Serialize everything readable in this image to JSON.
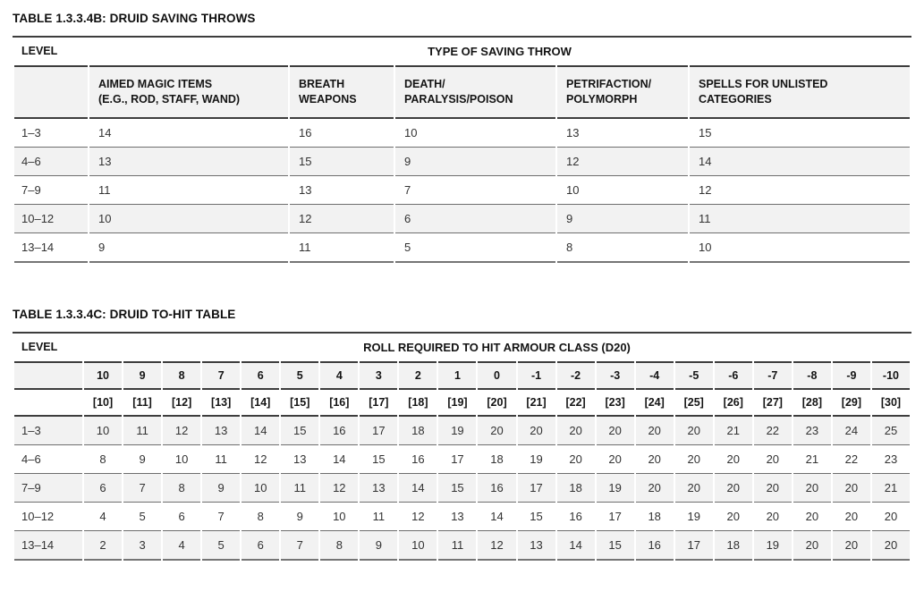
{
  "colors": {
    "stripe": "#f2f2f2",
    "heavy_rule": "#3d3d3d",
    "thin_rule": "#6e6e6e",
    "bottom_rule": "#757575",
    "heading_text": "#0f0f0f",
    "body_text": "#333333",
    "background": "#ffffff"
  },
  "tables": {
    "saving_throws": {
      "title": "TABLE 1.3.3.4B: DRUID SAVING THROWS",
      "level_header": "LEVEL",
      "group_header": "TYPE OF SAVING THROW",
      "column_headers": [
        "AIMED MAGIC ITEMS\n(E.G., ROD, STAFF, WAND)",
        "BREATH\nWEAPONS",
        "DEATH/\nPARALYSIS/POISON",
        "PETRIFACTION/\nPOLYMORPH",
        "SPELLS FOR UNLISTED\nCATEGORIES"
      ],
      "rows": [
        {
          "level": "1–3",
          "values": [
            14,
            16,
            10,
            13,
            15
          ]
        },
        {
          "level": "4–6",
          "values": [
            13,
            15,
            9,
            12,
            14
          ]
        },
        {
          "level": "7–9",
          "values": [
            11,
            13,
            7,
            10,
            12
          ]
        },
        {
          "level": "10–12",
          "values": [
            10,
            12,
            6,
            9,
            11
          ]
        },
        {
          "level": "13–14",
          "values": [
            9,
            11,
            5,
            8,
            10
          ]
        }
      ]
    },
    "to_hit": {
      "title": "TABLE 1.3.3.4C: DRUID TO-HIT TABLE",
      "level_header": "LEVEL",
      "group_header": "ROLL REQUIRED TO HIT ARMOUR CLASS (D20)",
      "armour_class_row": [
        "10",
        "9",
        "8",
        "7",
        "6",
        "5",
        "4",
        "3",
        "2",
        "1",
        "0",
        "-1",
        "-2",
        "-3",
        "-4",
        "-5",
        "-6",
        "-7",
        "-8",
        "-9",
        "-10"
      ],
      "armour_class_bracket_row": [
        "[10]",
        "[11]",
        "[12]",
        "[13]",
        "[14]",
        "[15]",
        "[16]",
        "[17]",
        "[18]",
        "[19]",
        "[20]",
        "[21]",
        "[22]",
        "[23]",
        "[24]",
        "[25]",
        "[26]",
        "[27]",
        "[28]",
        "[29]",
        "[30]"
      ],
      "rows": [
        {
          "level": "1–3",
          "values": [
            10,
            11,
            12,
            13,
            14,
            15,
            16,
            17,
            18,
            19,
            20,
            20,
            20,
            20,
            20,
            20,
            21,
            22,
            23,
            24,
            25
          ]
        },
        {
          "level": "4–6",
          "values": [
            8,
            9,
            10,
            11,
            12,
            13,
            14,
            15,
            16,
            17,
            18,
            19,
            20,
            20,
            20,
            20,
            20,
            20,
            21,
            22,
            23
          ]
        },
        {
          "level": "7–9",
          "values": [
            6,
            7,
            8,
            9,
            10,
            11,
            12,
            13,
            14,
            15,
            16,
            17,
            18,
            19,
            20,
            20,
            20,
            20,
            20,
            20,
            21
          ]
        },
        {
          "level": "10–12",
          "values": [
            4,
            5,
            6,
            7,
            8,
            9,
            10,
            11,
            12,
            13,
            14,
            15,
            16,
            17,
            18,
            19,
            20,
            20,
            20,
            20,
            20
          ]
        },
        {
          "level": "13–14",
          "values": [
            2,
            3,
            4,
            5,
            6,
            7,
            8,
            9,
            10,
            11,
            12,
            13,
            14,
            15,
            16,
            17,
            18,
            19,
            20,
            20,
            20
          ]
        }
      ]
    }
  }
}
